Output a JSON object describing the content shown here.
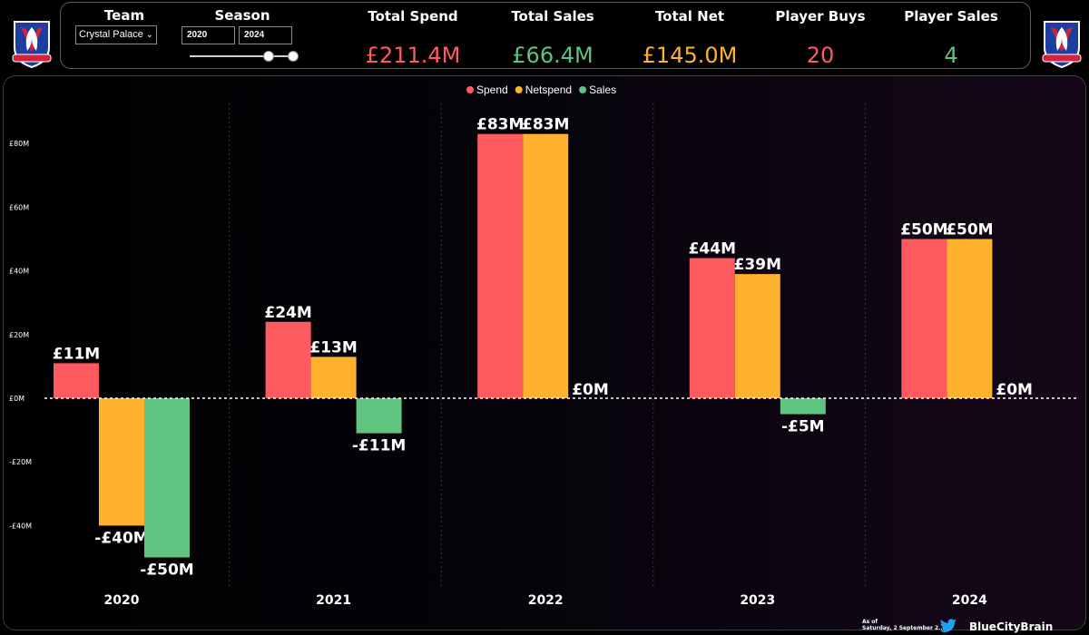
{
  "filters": {
    "team_title": "Team",
    "team_value": "Crystal Palace",
    "season_title": "Season",
    "start_year": "2020",
    "end_year": "2024"
  },
  "kpis": [
    {
      "label": "Total Spend",
      "value": "£211.4M",
      "color": "#ff5a5f"
    },
    {
      "label": "Total Sales",
      "value": "£66.4M",
      "color": "#5ec47f"
    },
    {
      "label": "Total Net",
      "value": "£145.0M",
      "color": "#ffb22e"
    },
    {
      "label": "Player Buys",
      "value": "20",
      "color": "#ff5a5f"
    },
    {
      "label": "Player Sales",
      "value": "4",
      "color": "#5ec47f"
    }
  ],
  "footer": {
    "as_of": "As of",
    "date": "Saturday, 2 September 2...",
    "brand": "BlueCityBrain"
  },
  "icons": [
    "crystal-palace-crest",
    "twitter-bird-icon",
    "chevron-down-icon"
  ],
  "chart_data": {
    "type": "bar",
    "categories": [
      "2020",
      "2021",
      "2022",
      "2023",
      "2024"
    ],
    "series": [
      {
        "name": "Spend",
        "color": "#ff5a5f",
        "values": [
          11,
          24,
          83,
          44,
          50
        ],
        "labels": [
          "£11M",
          "£24M",
          "£83M",
          "£44M",
          "£50M"
        ]
      },
      {
        "name": "Netspend",
        "color": "#ffb22e",
        "values": [
          -40,
          13,
          83,
          39,
          50
        ],
        "labels": [
          "-£40M",
          "£13M",
          "£83M",
          "£39M",
          "£50M"
        ]
      },
      {
        "name": "Sales",
        "color": "#5ec47f",
        "values": [
          -50,
          -11,
          0,
          -5,
          0
        ],
        "labels": [
          "-£50M",
          "-£11M",
          "£0M",
          "-£5M",
          "£0M"
        ]
      }
    ],
    "yticks": [
      80,
      60,
      40,
      20,
      0,
      -20,
      -40
    ],
    "ytick_labels": [
      "£80M",
      "£60M",
      "£40M",
      "£20M",
      "£0M",
      "-£20M",
      "-£40M"
    ],
    "ylim": [
      -55,
      92
    ],
    "legend_position": "top-center",
    "zero_line": "dashed white"
  }
}
